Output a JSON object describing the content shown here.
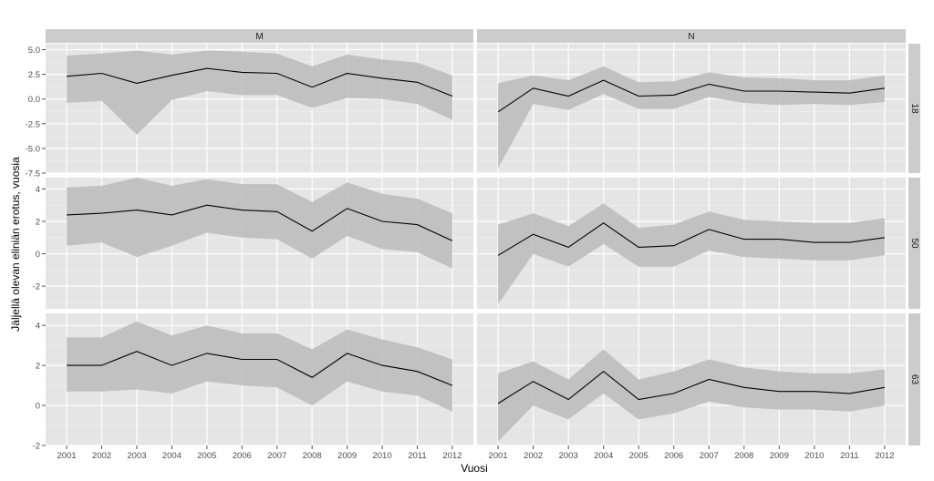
{
  "chart_data": {
    "type": "line",
    "xlabel": "Vuosi",
    "ylabel": "Jäljellä olevan eliniän erotus, vuosia",
    "x": [
      2001,
      2002,
      2003,
      2004,
      2005,
      2006,
      2007,
      2008,
      2009,
      2010,
      2011,
      2012
    ],
    "x_ticks": [
      "2001",
      "2002",
      "2003",
      "2004",
      "2005",
      "2006",
      "2007",
      "2008",
      "2009",
      "2010",
      "2011",
      "2012"
    ],
    "columns": [
      "M",
      "N"
    ],
    "rows": [
      "18",
      "50",
      "63"
    ],
    "grid": true,
    "band_color": "#bdbdbd",
    "line_color": "#000000",
    "panel_background": "#e5e5e5",
    "strip_background": "#cccccc",
    "row_settings": [
      {
        "label": "18",
        "ylim": [
          -7.5,
          5.6
        ],
        "ticks": [
          5.0,
          2.5,
          0.0,
          -2.5,
          -5.0,
          -7.5
        ],
        "tick_labels": [
          "5.0",
          "2.5",
          "0.0",
          "-2.5",
          "-5.0",
          "-7.5"
        ]
      },
      {
        "label": "50",
        "ylim": [
          -3.4,
          4.7
        ],
        "ticks": [
          4,
          2,
          0,
          -2
        ],
        "tick_labels": [
          "4",
          "2",
          "0",
          "-2"
        ]
      },
      {
        "label": "63",
        "ylim": [
          -2.0,
          4.6
        ],
        "ticks": [
          4,
          2,
          0,
          -2
        ],
        "tick_labels": [
          "4",
          "2",
          "0",
          "-2"
        ]
      }
    ],
    "panels": [
      {
        "col": "M",
        "row": "18",
        "mean": [
          2.3,
          2.6,
          1.6,
          2.4,
          3.1,
          2.7,
          2.6,
          1.2,
          2.6,
          2.1,
          1.7,
          0.3
        ],
        "lower": [
          -0.4,
          -0.2,
          -3.6,
          -0.1,
          0.8,
          0.4,
          0.4,
          -0.9,
          0.1,
          0.0,
          -0.5,
          -2.1
        ],
        "upper": [
          4.4,
          4.6,
          4.9,
          4.5,
          4.9,
          4.8,
          4.6,
          3.3,
          4.5,
          4.0,
          3.7,
          2.4
        ]
      },
      {
        "col": "N",
        "row": "18",
        "mean": [
          -1.3,
          1.1,
          0.3,
          1.9,
          0.3,
          0.4,
          1.5,
          0.8,
          0.8,
          0.7,
          0.6,
          1.1
        ],
        "lower": [
          -7.0,
          -0.5,
          -1.1,
          0.5,
          -1.0,
          -1.0,
          0.2,
          -0.4,
          -0.6,
          -0.5,
          -0.6,
          -0.3
        ],
        "upper": [
          1.6,
          2.4,
          1.9,
          3.3,
          1.7,
          1.8,
          2.7,
          2.2,
          2.1,
          1.9,
          1.9,
          2.4
        ]
      },
      {
        "col": "M",
        "row": "50",
        "mean": [
          2.4,
          2.5,
          2.7,
          2.4,
          3.0,
          2.7,
          2.6,
          1.4,
          2.8,
          2.0,
          1.8,
          0.8
        ],
        "lower": [
          0.5,
          0.7,
          -0.2,
          0.5,
          1.3,
          1.0,
          0.9,
          -0.3,
          1.1,
          0.3,
          0.1,
          -0.9
        ],
        "upper": [
          4.1,
          4.2,
          4.7,
          4.2,
          4.6,
          4.3,
          4.3,
          3.2,
          4.4,
          3.7,
          3.4,
          2.5
        ]
      },
      {
        "col": "N",
        "row": "50",
        "mean": [
          -0.1,
          1.2,
          0.4,
          1.9,
          0.4,
          0.5,
          1.5,
          0.9,
          0.9,
          0.7,
          0.7,
          1.0
        ],
        "lower": [
          -3.1,
          0.0,
          -0.8,
          0.6,
          -0.8,
          -0.8,
          0.2,
          -0.2,
          -0.3,
          -0.4,
          -0.4,
          -0.1
        ],
        "upper": [
          1.8,
          2.5,
          1.7,
          3.1,
          1.6,
          1.8,
          2.6,
          2.1,
          2.0,
          1.9,
          1.9,
          2.2
        ]
      },
      {
        "col": "M",
        "row": "63",
        "mean": [
          2.0,
          2.0,
          2.7,
          2.0,
          2.6,
          2.3,
          2.3,
          1.4,
          2.6,
          2.0,
          1.7,
          1.0
        ],
        "lower": [
          0.7,
          0.7,
          0.8,
          0.6,
          1.2,
          1.0,
          0.9,
          0.0,
          1.2,
          0.7,
          0.5,
          -0.3
        ],
        "upper": [
          3.4,
          3.4,
          4.2,
          3.5,
          4.0,
          3.6,
          3.6,
          2.8,
          3.8,
          3.3,
          2.9,
          2.3
        ]
      },
      {
        "col": "N",
        "row": "63",
        "mean": [
          0.1,
          1.2,
          0.3,
          1.7,
          0.3,
          0.6,
          1.3,
          0.9,
          0.7,
          0.7,
          0.6,
          0.9
        ],
        "lower": [
          -1.8,
          0.0,
          -0.7,
          0.6,
          -0.7,
          -0.4,
          0.2,
          -0.1,
          -0.2,
          -0.2,
          -0.3,
          0.0
        ],
        "upper": [
          1.6,
          2.2,
          1.3,
          2.8,
          1.3,
          1.7,
          2.3,
          1.9,
          1.7,
          1.6,
          1.6,
          1.8
        ]
      }
    ]
  }
}
